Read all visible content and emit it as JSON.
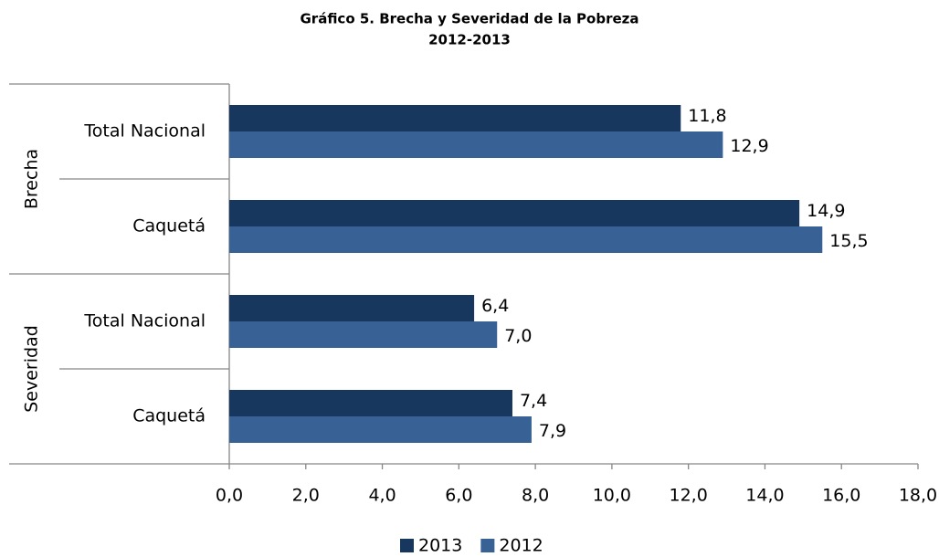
{
  "chart_data": {
    "type": "hbar",
    "title": [
      "Gráfico 5. Brecha y Severidad de la  Pobreza",
      "2012-2013"
    ],
    "groups": [
      "Brecha",
      "Severidad"
    ],
    "categories": [
      "Total Nacional",
      "Caquetá",
      "Total Nacional",
      "Caquetá"
    ],
    "series": [
      {
        "name": "2013",
        "color": "#17375e",
        "values": [
          11.8,
          14.9,
          6.4,
          7.4
        ],
        "value_labels": [
          "11,8",
          "14,9",
          "6,4",
          "7,4"
        ]
      },
      {
        "name": "2012",
        "color": "#386196",
        "values": [
          12.9,
          15.5,
          7.0,
          7.9
        ],
        "value_labels": [
          "12,9",
          "15,5",
          "7,0",
          "7,9"
        ]
      }
    ],
    "xlim": [
      0,
      18
    ],
    "xticks": [
      {
        "value": 0,
        "label": "0,0"
      },
      {
        "value": 2,
        "label": "2,0"
      },
      {
        "value": 4,
        "label": "4,0"
      },
      {
        "value": 6,
        "label": "6,0"
      },
      {
        "value": 8,
        "label": "8,0"
      },
      {
        "value": 10,
        "label": "10,0"
      },
      {
        "value": 12,
        "label": "12,0"
      },
      {
        "value": 14,
        "label": "14,0"
      },
      {
        "value": 16,
        "label": "16,0"
      },
      {
        "value": 18,
        "label": "18,0"
      }
    ],
    "legend": "bottom"
  }
}
